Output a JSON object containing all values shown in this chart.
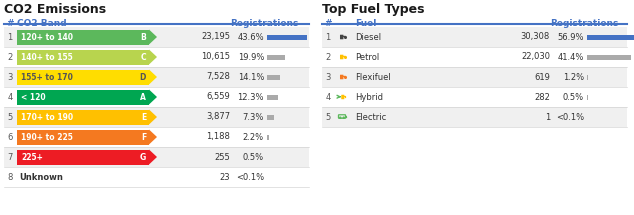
{
  "left_title": "CO2 Emissions",
  "right_title": "Top Fuel Types",
  "left_header_num": "#",
  "left_header_band": "CO2 Band",
  "left_header_reg": "Registrations",
  "right_header_num": "#",
  "right_header_fuel": "Fuel",
  "right_header_reg": "Registrations",
  "co2_rows": [
    {
      "rank": 1,
      "label": "120+ to 140",
      "grade": "B",
      "color": "#5cb85c",
      "text_color": "#ffffff",
      "value_str": "23,195",
      "pct": 43.6,
      "pct_str": "43.6%"
    },
    {
      "rank": 2,
      "label": "140+ to 155",
      "grade": "C",
      "color": "#b8d44e",
      "text_color": "#ffffff",
      "value_str": "10,615",
      "pct": 19.9,
      "pct_str": "19.9%"
    },
    {
      "rank": 3,
      "label": "155+ to 170",
      "grade": "D",
      "color": "#ffdd00",
      "text_color": "#555555",
      "value_str": "7,528",
      "pct": 14.1,
      "pct_str": "14.1%"
    },
    {
      "rank": 4,
      "label": "< 120",
      "grade": "A",
      "color": "#00a651",
      "text_color": "#ffffff",
      "value_str": "6,559",
      "pct": 12.3,
      "pct_str": "12.3%"
    },
    {
      "rank": 5,
      "label": "170+ to 190",
      "grade": "E",
      "color": "#ffc000",
      "text_color": "#ffffff",
      "value_str": "3,877",
      "pct": 7.3,
      "pct_str": "7.3%"
    },
    {
      "rank": 6,
      "label": "190+ to 225",
      "grade": "F",
      "color": "#f47920",
      "text_color": "#ffffff",
      "value_str": "1,188",
      "pct": 2.2,
      "pct_str": "2.2%"
    },
    {
      "rank": 7,
      "label": "225+",
      "grade": "G",
      "color": "#ed1c24",
      "text_color": "#ffffff",
      "value_str": "255",
      "pct": 0.5,
      "pct_str": "0.5%"
    },
    {
      "rank": 8,
      "label": "Unknown",
      "grade": null,
      "color": null,
      "text_color": "#333333",
      "value_str": "23",
      "pct": 0.05,
      "pct_str": "<0.1%"
    }
  ],
  "fuel_rows": [
    {
      "rank": 1,
      "fuel": "Diesel",
      "icon_color": "#444444",
      "icon2_color": null,
      "value_str": "30,308",
      "pct": 56.9,
      "pct_str": "56.9%"
    },
    {
      "rank": 2,
      "fuel": "Petrol",
      "icon_color": "#ffc000",
      "icon2_color": null,
      "value_str": "22,030",
      "pct": 41.4,
      "pct_str": "41.4%"
    },
    {
      "rank": 3,
      "fuel": "Flexifuel",
      "icon_color": "#f47920",
      "icon2_color": null,
      "value_str": "619",
      "pct": 1.2,
      "pct_str": "1.2%"
    },
    {
      "rank": 4,
      "fuel": "Hybrid",
      "icon_color": "#ffc000",
      "icon2_color": "#5cb85c",
      "value_str": "282",
      "pct": 0.5,
      "pct_str": "0.5%"
    },
    {
      "rank": 5,
      "fuel": "Electric",
      "icon_color": "#5cb85c",
      "icon2_color": null,
      "value_str": "1",
      "pct": 0.05,
      "pct_str": "<0.1%"
    }
  ],
  "bar_blue": "#4472c4",
  "bar_gray": "#aaaaaa",
  "header_blue": "#4472c4",
  "title_color": "#1a1a1a",
  "row_bg_odd": "#f0f0f0",
  "row_bg_even": "#ffffff",
  "divider_color": "#cccccc",
  "header_divider": "#4472c4",
  "rank_color": "#555555",
  "value_color": "#333333"
}
